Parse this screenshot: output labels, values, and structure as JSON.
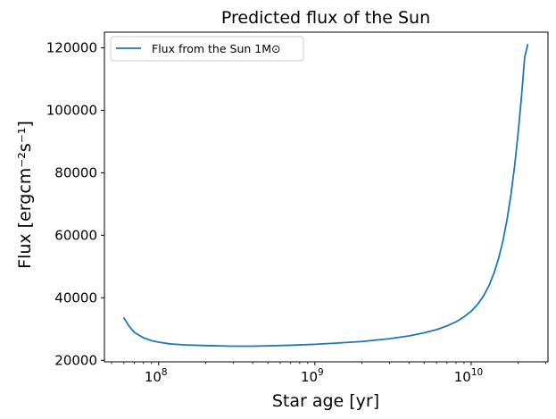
{
  "chart_data": {
    "type": "line",
    "title": "Predicted flux of the Sun",
    "xlabel": "Star age [yr]",
    "ylabel": "Flux [ergcm⁻²s⁻¹]",
    "xscale": "log",
    "xlim": [
      45000000,
      31000000000
    ],
    "ylim": [
      19500,
      125000
    ],
    "x_ticks": [
      100000000,
      1000000000,
      10000000000
    ],
    "x_tick_labels": [
      {
        "base": "10",
        "exp": "8"
      },
      {
        "base": "10",
        "exp": "9"
      },
      {
        "base": "10",
        "exp": "10"
      }
    ],
    "y_ticks": [
      20000,
      40000,
      60000,
      80000,
      100000,
      120000
    ],
    "y_tick_labels": [
      "20000",
      "40000",
      "60000",
      "80000",
      "100000",
      "120000"
    ],
    "grid": false,
    "legend_position": "upper left",
    "series": [
      {
        "name": "Flux from the Sun 1M⊙",
        "color": "#1f77b4",
        "x": [
          60000000,
          65000000,
          70000000,
          80000000,
          90000000,
          100000000,
          120000000,
          150000000,
          200000000,
          300000000,
          400000000,
          500000000,
          700000000,
          1000000000,
          1500000000,
          2000000000,
          3000000000,
          4000000000,
          5000000000,
          6000000000,
          7000000000,
          8000000000,
          9000000000,
          10000000000,
          11000000000,
          12000000000,
          13000000000,
          14000000000,
          15000000000,
          16000000000,
          17000000000,
          18000000000,
          19000000000,
          20000000000,
          21000000000,
          22000000000,
          23000000000
        ],
        "y": [
          33500,
          30800,
          28900,
          27200,
          26300,
          25800,
          25200,
          24900,
          24700,
          24500,
          24500,
          24600,
          24800,
          25100,
          25600,
          26000,
          26900,
          27800,
          28800,
          29800,
          31000,
          32300,
          33900,
          35700,
          37900,
          40600,
          43900,
          47900,
          52700,
          58400,
          65300,
          73300,
          82500,
          93000,
          104500,
          117000,
          121000
        ]
      }
    ]
  }
}
